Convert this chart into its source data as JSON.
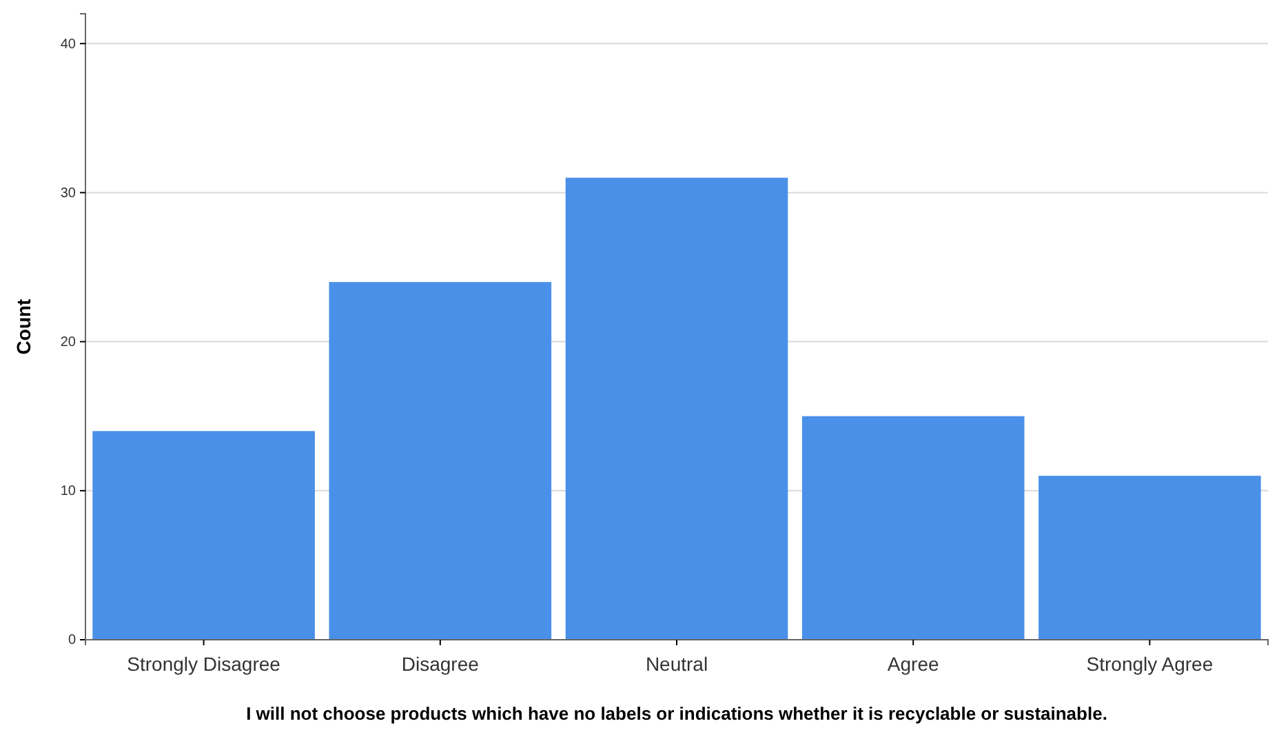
{
  "chart_data": {
    "type": "bar",
    "xlabel": "I will not choose products which have no labels or indications whether it is recyclable or sustainable.",
    "ylabel": "Count",
    "categories": [
      "Strongly Disagree",
      "Disagree",
      "Neutral",
      "Agree",
      "Strongly Agree"
    ],
    "values": [
      14,
      24,
      31,
      15,
      11
    ],
    "color": "#4a90e8",
    "ylim": [
      0,
      42
    ],
    "yticks": [
      0,
      10,
      20,
      30,
      40
    ],
    "grid": "y"
  }
}
